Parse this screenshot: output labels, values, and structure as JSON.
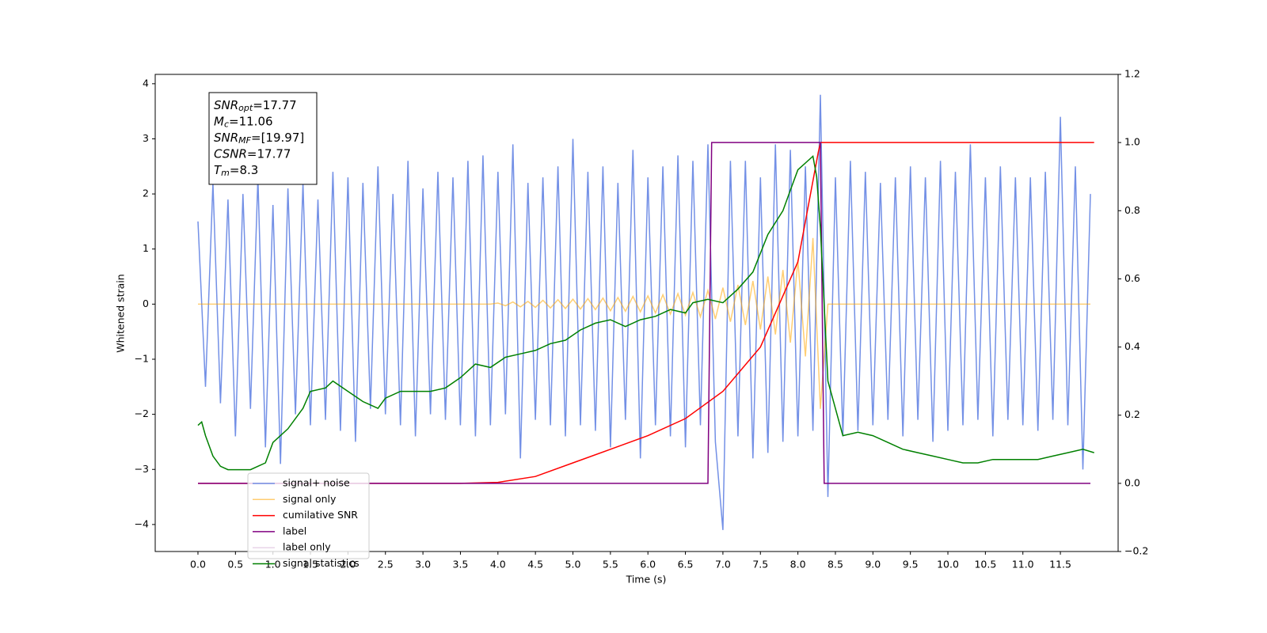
{
  "chart_data": {
    "type": "line",
    "xlabel": "Time (s)",
    "ylabel": "Whitened strain",
    "xlim": [
      -0.57,
      12.27
    ],
    "ylim": [
      -4.49,
      4.17
    ],
    "y2lim": [
      -0.2,
      1.2
    ],
    "xticks": [
      {
        "value": 0,
        "label": "0.0"
      },
      0.5,
      {
        "value": 1,
        "label": "1.0"
      },
      1.5,
      {
        "value": 2,
        "label": "2.0"
      },
      2.5,
      {
        "value": 3,
        "label": "3.0"
      },
      3.5,
      {
        "value": 4,
        "label": "4.0"
      },
      4.5,
      {
        "value": 5,
        "label": "5.0"
      },
      5.5,
      {
        "value": 6,
        "label": "6.0"
      },
      6.5,
      {
        "value": 7,
        "label": "7.0"
      },
      7.5,
      {
        "value": 8,
        "label": "8.0"
      },
      8.5,
      {
        "value": 9,
        "label": "9.0"
      },
      9.5,
      {
        "value": 10,
        "label": "10.0"
      },
      10.5,
      {
        "value": 11,
        "label": "11.0"
      },
      11.5
    ],
    "yticks": [
      {
        "value": -4,
        "label": "−4"
      },
      {
        "value": -3,
        "label": "−3"
      },
      {
        "value": -2,
        "label": "−2"
      },
      {
        "value": -1,
        "label": "−1"
      },
      0,
      1,
      2,
      3,
      4
    ],
    "y2ticks": [
      {
        "value": -0.2,
        "label": "−0.2"
      },
      {
        "value": 0,
        "label": "0.0"
      },
      0.2,
      0.4,
      0.6,
      0.8,
      {
        "value": 1,
        "label": "1.0"
      },
      1.2
    ],
    "annotation": [
      {
        "main": "SNR",
        "sub": "opt",
        "rest": "=17.77"
      },
      {
        "main": "M",
        "sub": "c",
        "rest": "=11.06"
      },
      {
        "main": "SNR",
        "sub": "MF",
        "rest": "=[19.97]"
      },
      {
        "main": "CSNR",
        "rest": "=17.77"
      },
      {
        "main": "T",
        "sub": "m",
        "rest": "=8.3"
      }
    ],
    "x": [
      0.0,
      0.1,
      0.2,
      0.3,
      0.4,
      0.5,
      0.6,
      0.7,
      0.8,
      0.9,
      1.0,
      1.1,
      1.2,
      1.3,
      1.4,
      1.5,
      1.6,
      1.7,
      1.8,
      1.9,
      2.0,
      2.1,
      2.2,
      2.3,
      2.4,
      2.5,
      2.6,
      2.7,
      2.8,
      2.9,
      3.0,
      3.1,
      3.2,
      3.3,
      3.4,
      3.5,
      3.6,
      3.7,
      3.8,
      3.9,
      4.0,
      4.1,
      4.2,
      4.3,
      4.4,
      4.5,
      4.6,
      4.7,
      4.8,
      4.9,
      5.0,
      5.1,
      5.2,
      5.3,
      5.4,
      5.5,
      5.6,
      5.7,
      5.8,
      5.9,
      6.0,
      6.1,
      6.2,
      6.3,
      6.4,
      6.5,
      6.6,
      6.7,
      6.8,
      6.9,
      7.0,
      7.1,
      7.2,
      7.3,
      7.4,
      7.5,
      7.6,
      7.7,
      7.8,
      7.9,
      8.0,
      8.1,
      8.2,
      8.3,
      8.4,
      8.5,
      8.6,
      8.7,
      8.8,
      8.9,
      9.0,
      9.1,
      9.2,
      9.3,
      9.4,
      9.5,
      9.6,
      9.7,
      9.8,
      9.9,
      10.0,
      10.1,
      10.2,
      10.3,
      10.4,
      10.5,
      10.6,
      10.7,
      10.8,
      10.9,
      11.0,
      11.1,
      11.2,
      11.3,
      11.4,
      11.5,
      11.6,
      11.7,
      11.8,
      11.9
    ],
    "series": [
      {
        "name": "signal+ noise",
        "color": "#7390e6",
        "values": [
          1.5,
          -1.5,
          2.2,
          -1.8,
          1.9,
          -2.4,
          2.0,
          -1.9,
          2.3,
          -2.6,
          1.8,
          -2.9,
          2.1,
          -2.0,
          2.2,
          -2.2,
          1.9,
          -2.1,
          2.4,
          -2.3,
          2.3,
          -2.5,
          2.2,
          -1.9,
          2.5,
          -2.0,
          2.0,
          -2.2,
          2.6,
          -2.4,
          2.1,
          -2.0,
          2.4,
          -2.1,
          2.3,
          -2.2,
          2.6,
          -2.4,
          2.7,
          -2.2,
          2.4,
          -2.0,
          2.9,
          -2.8,
          2.2,
          -2.1,
          2.3,
          -2.2,
          2.5,
          -2.4,
          3.0,
          -2.2,
          2.4,
          -2.3,
          2.5,
          -2.6,
          2.2,
          -2.1,
          2.8,
          -2.8,
          2.3,
          -2.2,
          2.5,
          -2.4,
          2.7,
          -2.6,
          2.6,
          -2.2,
          2.9,
          -2.5,
          -4.1,
          2.6,
          -2.4,
          2.6,
          -2.8,
          2.3,
          -2.7,
          2.9,
          -2.5,
          2.8,
          -2.4,
          2.5,
          -2.3,
          3.8,
          -3.5,
          2.3,
          -2.4,
          2.6,
          -2.3,
          2.4,
          -2.2,
          2.2,
          -2.1,
          2.3,
          -2.4,
          2.5,
          -2.1,
          2.3,
          -2.5,
          2.6,
          -2.3,
          2.4,
          -2.2,
          2.9,
          -2.1,
          2.3,
          -2.4,
          2.5,
          -2.1,
          2.3,
          -2.2,
          2.3,
          -2.3,
          2.4,
          -2.1,
          3.4,
          -2.2,
          2.5,
          -3.0,
          2.0
        ]
      },
      {
        "name": "signal only",
        "color": "#ffa500",
        "values": [
          0,
          0,
          0,
          0,
          0,
          0,
          0,
          0,
          0,
          0,
          0,
          0,
          0,
          0,
          0,
          0,
          0,
          0,
          0,
          0,
          0,
          0,
          0,
          0,
          0,
          0,
          0,
          0,
          0,
          0,
          0,
          0,
          0,
          0,
          0,
          0,
          0,
          0,
          0,
          0,
          0.02,
          -0.03,
          0.04,
          -0.05,
          0.05,
          -0.06,
          0.07,
          -0.07,
          0.08,
          -0.08,
          0.09,
          -0.09,
          0.1,
          -0.1,
          0.11,
          -0.12,
          0.12,
          -0.13,
          0.14,
          -0.14,
          0.15,
          -0.16,
          0.17,
          -0.18,
          0.19,
          -0.2,
          0.21,
          -0.23,
          0.25,
          -0.27,
          0.3,
          -0.32,
          0.35,
          -0.38,
          0.42,
          -0.46,
          0.5,
          -0.55,
          0.62,
          -0.7,
          0.8,
          -0.95,
          1.2,
          -1.9,
          0,
          0,
          0,
          0,
          0,
          0,
          0,
          0,
          0,
          0,
          0,
          0,
          0,
          0,
          0,
          0,
          0,
          0,
          0,
          0,
          0,
          0,
          0,
          0,
          0,
          0,
          0,
          0,
          0,
          0,
          0,
          0,
          0,
          0,
          0,
          0
        ]
      },
      {
        "name": "cumilative SNR",
        "color": "#ff0000",
        "axis": "y2",
        "x": [
          0.0,
          3.5,
          4.0,
          4.5,
          5.0,
          5.5,
          6.0,
          6.5,
          7.0,
          7.5,
          8.0,
          8.27,
          8.3,
          11.95
        ],
        "values": [
          0,
          0,
          0.003,
          0.02,
          0.06,
          0.1,
          0.14,
          0.19,
          0.27,
          0.4,
          0.65,
          0.97,
          1.0,
          1.0
        ]
      },
      {
        "name": "label",
        "color": "#800080",
        "axis": "y2",
        "x": [
          0.0,
          6.8,
          6.85,
          8.3,
          8.35,
          11.9
        ],
        "values": [
          0,
          0,
          1,
          1,
          0,
          0
        ]
      },
      {
        "name": "label only",
        "color": "#e8d5e8"
      },
      {
        "name": "signal statistics",
        "color": "#008000",
        "axis": "y2",
        "x": [
          0,
          0.05,
          0.1,
          0.2,
          0.3,
          0.4,
          0.5,
          0.6,
          0.7,
          0.8,
          0.9,
          1.0,
          1.2,
          1.4,
          1.5,
          1.7,
          1.8,
          2.0,
          2.2,
          2.4,
          2.5,
          2.7,
          2.9,
          3.1,
          3.3,
          3.5,
          3.7,
          3.9,
          4.1,
          4.3,
          4.5,
          4.7,
          4.9,
          5.1,
          5.3,
          5.5,
          5.7,
          5.9,
          6.1,
          6.3,
          6.5,
          6.6,
          6.8,
          7.0,
          7.2,
          7.4,
          7.6,
          7.8,
          7.9,
          8.0,
          8.1,
          8.2,
          8.25,
          8.3,
          8.4,
          8.6,
          8.8,
          9.0,
          9.2,
          9.4,
          9.6,
          9.8,
          10.0,
          10.2,
          10.4,
          10.6,
          10.8,
          11.0,
          11.2,
          11.4,
          11.6,
          11.8,
          11.95
        ],
        "values": [
          0.17,
          0.18,
          0.14,
          0.08,
          0.05,
          0.04,
          0.04,
          0.04,
          0.04,
          0.05,
          0.06,
          0.12,
          0.16,
          0.22,
          0.27,
          0.28,
          0.3,
          0.27,
          0.24,
          0.22,
          0.25,
          0.27,
          0.27,
          0.27,
          0.28,
          0.31,
          0.35,
          0.34,
          0.37,
          0.38,
          0.39,
          0.41,
          0.42,
          0.45,
          0.47,
          0.48,
          0.46,
          0.48,
          0.49,
          0.51,
          0.5,
          0.53,
          0.54,
          0.53,
          0.57,
          0.62,
          0.73,
          0.8,
          0.86,
          0.92,
          0.94,
          0.96,
          0.9,
          0.75,
          0.3,
          0.14,
          0.15,
          0.14,
          0.12,
          0.1,
          0.09,
          0.08,
          0.07,
          0.06,
          0.06,
          0.07,
          0.07,
          0.07,
          0.07,
          0.08,
          0.09,
          0.1,
          0.09
        ]
      }
    ]
  }
}
